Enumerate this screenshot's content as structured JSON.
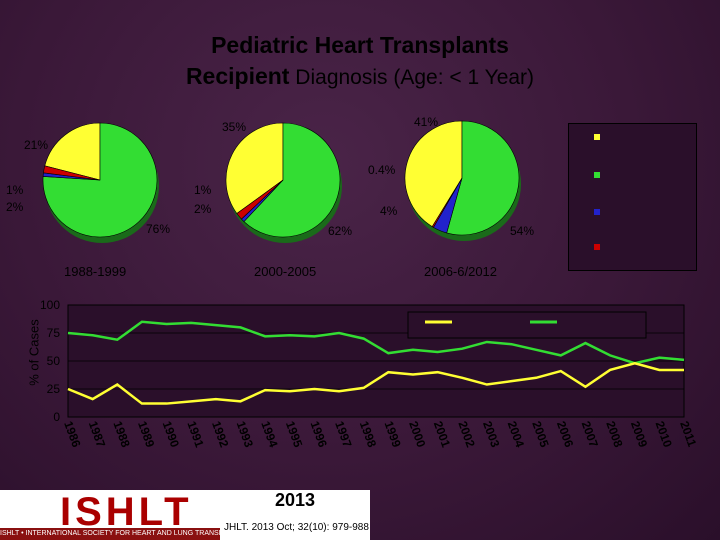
{
  "title_line1": "Pediatric Heart Transplants",
  "title_line2_bold": "Recipient",
  "title_line2_rest": " Diagnosis (Age: < 1 Year)",
  "colors": {
    "yellow": "#ffff33",
    "green": "#33dd33",
    "blue": "#2222cc",
    "red": "#cc0000"
  },
  "chart_data": [
    {
      "type": "pie",
      "pies": [
        {
          "label": "1988-1999",
          "slices": [
            {
              "color": "yellow",
              "value": 21,
              "label": "21%"
            },
            {
              "color": "green",
              "value": 76,
              "label": "76%"
            },
            {
              "color": "blue",
              "value": 1,
              "label": "1%"
            },
            {
              "color": "red",
              "value": 2,
              "label": "2%"
            }
          ]
        },
        {
          "label": "2000-2005",
          "slices": [
            {
              "color": "yellow",
              "value": 35,
              "label": "35%"
            },
            {
              "color": "green",
              "value": 62,
              "label": "62%"
            },
            {
              "color": "blue",
              "value": 1,
              "label": "1%"
            },
            {
              "color": "red",
              "value": 2,
              "label": "2%"
            }
          ]
        },
        {
          "label": "2006-6/2012",
          "slices": [
            {
              "color": "yellow",
              "value": 41,
              "label": "41%"
            },
            {
              "color": "green",
              "value": 54,
              "label": "54%"
            },
            {
              "color": "blue",
              "value": 4,
              "label": "4%"
            },
            {
              "color": "red",
              "value": 0.4,
              "label": "0.4%"
            }
          ]
        }
      ]
    },
    {
      "type": "line",
      "ylabel": "% of Cases",
      "ylim": [
        0,
        100
      ],
      "yticks": [
        0,
        25,
        50,
        75,
        100
      ],
      "x": [
        "1986",
        "1987",
        "1988",
        "1989",
        "1990",
        "1991",
        "1992",
        "1993",
        "1994",
        "1995",
        "1996",
        "1997",
        "1998",
        "1999",
        "2000",
        "2001",
        "2002",
        "2003",
        "2004",
        "2005",
        "2006",
        "2007",
        "2008",
        "2009",
        "2010",
        "2011"
      ],
      "series": [
        {
          "color": "green",
          "values": [
            75,
            73,
            69,
            85,
            83,
            84,
            82,
            80,
            72,
            73,
            72,
            75,
            70,
            57,
            60,
            58,
            61,
            67,
            65,
            60,
            55,
            66,
            55,
            48,
            53,
            51
          ]
        },
        {
          "color": "yellow",
          "values": [
            25,
            16,
            29,
            12,
            12,
            14,
            16,
            14,
            24,
            23,
            25,
            23,
            26,
            40,
            38,
            40,
            35,
            29,
            32,
            35,
            41,
            27,
            42,
            48,
            42,
            42
          ]
        }
      ]
    }
  ],
  "footer": {
    "logo_text": "ISHLT",
    "logo_tagline": "ISHLT • INTERNATIONAL SOCIETY FOR HEART AND LUNG TRANSPLANTATION",
    "year": "2013",
    "citation": "JHLT. 2013 Oct; 32(10): 979-988"
  }
}
